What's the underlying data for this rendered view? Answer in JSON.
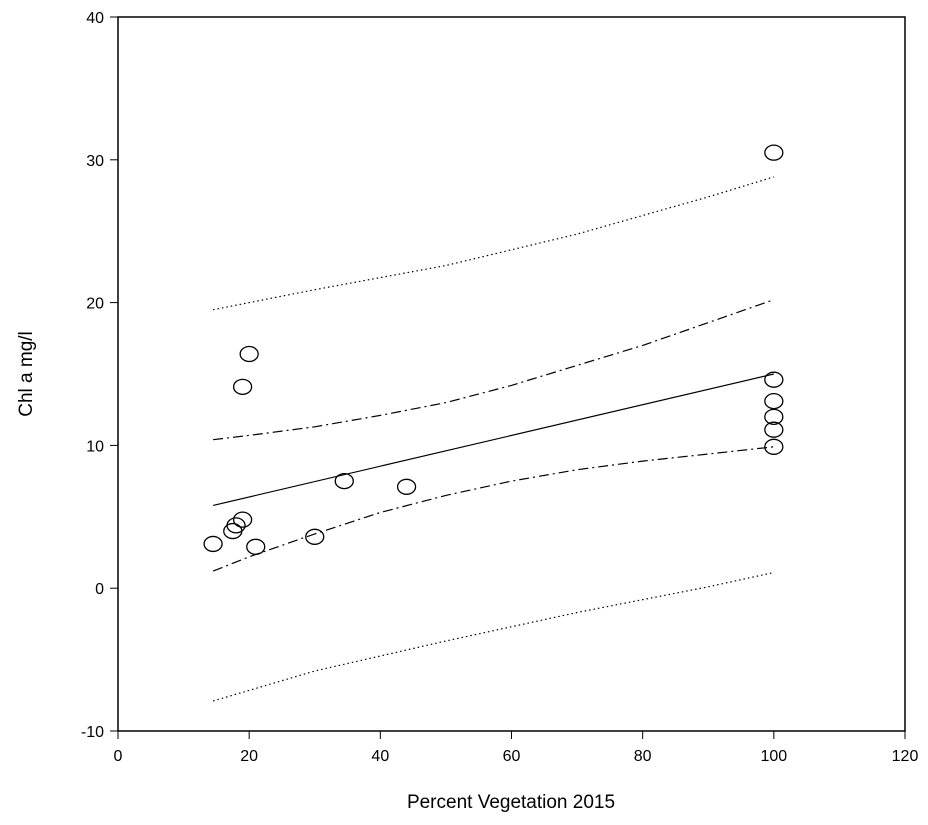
{
  "chart_data": {
    "type": "scatter",
    "xlabel": "Percent Vegetation 2015",
    "ylabel": "Chl a mg/l",
    "xlim": [
      0,
      120
    ],
    "ylim": [
      -10,
      40
    ],
    "xticks": [
      0,
      20,
      40,
      60,
      80,
      100,
      120
    ],
    "yticks": [
      -10,
      0,
      10,
      20,
      30,
      40
    ],
    "grid": false,
    "points": [
      {
        "x": 14.5,
        "y": 3.1
      },
      {
        "x": 17.5,
        "y": 4.0
      },
      {
        "x": 18.0,
        "y": 4.4
      },
      {
        "x": 19.0,
        "y": 4.8
      },
      {
        "x": 19.0,
        "y": 14.1
      },
      {
        "x": 20.0,
        "y": 16.4
      },
      {
        "x": 21.0,
        "y": 2.9
      },
      {
        "x": 30.0,
        "y": 3.6
      },
      {
        "x": 34.5,
        "y": 7.5
      },
      {
        "x": 44.0,
        "y": 7.1
      },
      {
        "x": 100.0,
        "y": 30.5
      },
      {
        "x": 100.0,
        "y": 14.6
      },
      {
        "x": 100.0,
        "y": 13.1
      },
      {
        "x": 100.0,
        "y": 12.0
      },
      {
        "x": 100.0,
        "y": 11.1
      },
      {
        "x": 100.0,
        "y": 9.9
      }
    ],
    "regression": {
      "x": [
        14.5,
        100
      ],
      "y": [
        5.8,
        15.0
      ]
    },
    "confidence_band": {
      "x": [
        14.5,
        20,
        30,
        40,
        50,
        60,
        70,
        80,
        90,
        100
      ],
      "upper": [
        10.4,
        10.7,
        11.3,
        12.1,
        13.0,
        14.2,
        15.6,
        17.0,
        18.6,
        20.2
      ],
      "lower": [
        1.2,
        2.2,
        3.8,
        5.3,
        6.5,
        7.5,
        8.3,
        8.9,
        9.4,
        9.9
      ]
    },
    "prediction_band": {
      "x": [
        14.5,
        30,
        50,
        70,
        90,
        100
      ],
      "upper": [
        19.5,
        20.9,
        22.6,
        24.8,
        27.4,
        28.8
      ],
      "lower": [
        -7.9,
        -5.8,
        -3.7,
        -1.7,
        0.1,
        1.1
      ]
    }
  }
}
